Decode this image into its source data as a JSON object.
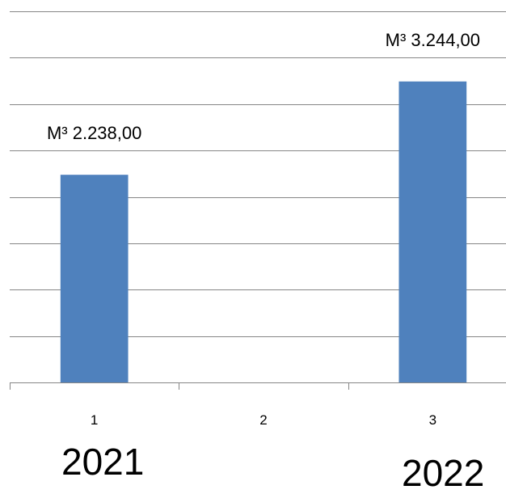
{
  "chart_data": {
    "type": "bar",
    "categories": [
      "1",
      "2",
      "3"
    ],
    "values": [
      2238,
      0,
      3244
    ],
    "data_labels": [
      "M³  2.238,00",
      "",
      "M³  3.244,00"
    ],
    "ylim": [
      0,
      4000
    ],
    "grid": true,
    "colors": {
      "bar": "#4f81bd",
      "grid": "#868686",
      "axis": "#868686"
    }
  },
  "annotations": {
    "year_left": "2021",
    "year_right": "2022"
  }
}
